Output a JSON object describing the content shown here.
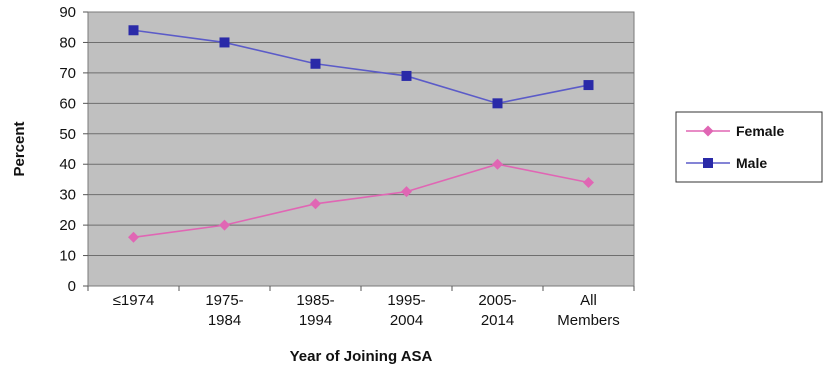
{
  "chart_data": {
    "type": "line",
    "categories": [
      [
        "≤1974"
      ],
      [
        "1975-",
        "1984"
      ],
      [
        "1985-",
        "1994"
      ],
      [
        "1995-",
        "2004"
      ],
      [
        "2005-",
        "2014"
      ],
      [
        "All",
        "Members"
      ]
    ],
    "series": [
      {
        "name": "Female",
        "values": [
          16,
          20,
          27,
          31,
          40,
          34
        ],
        "color": "#e066b4",
        "marker": "diamond"
      },
      {
        "name": "Male",
        "values": [
          84,
          80,
          73,
          69,
          60,
          66
        ],
        "color": "#5b5bc8",
        "marker": "square",
        "marker_color": "#2a2aa8"
      }
    ],
    "xlabel": "Year of Joining ASA",
    "ylabel": "Percent",
    "ylim": [
      0,
      90
    ],
    "yticks": [
      0,
      10,
      20,
      30,
      40,
      50,
      60,
      70,
      80,
      90
    ],
    "grid": true,
    "plot_background": "#c0c0c0",
    "legend_position": "right"
  }
}
